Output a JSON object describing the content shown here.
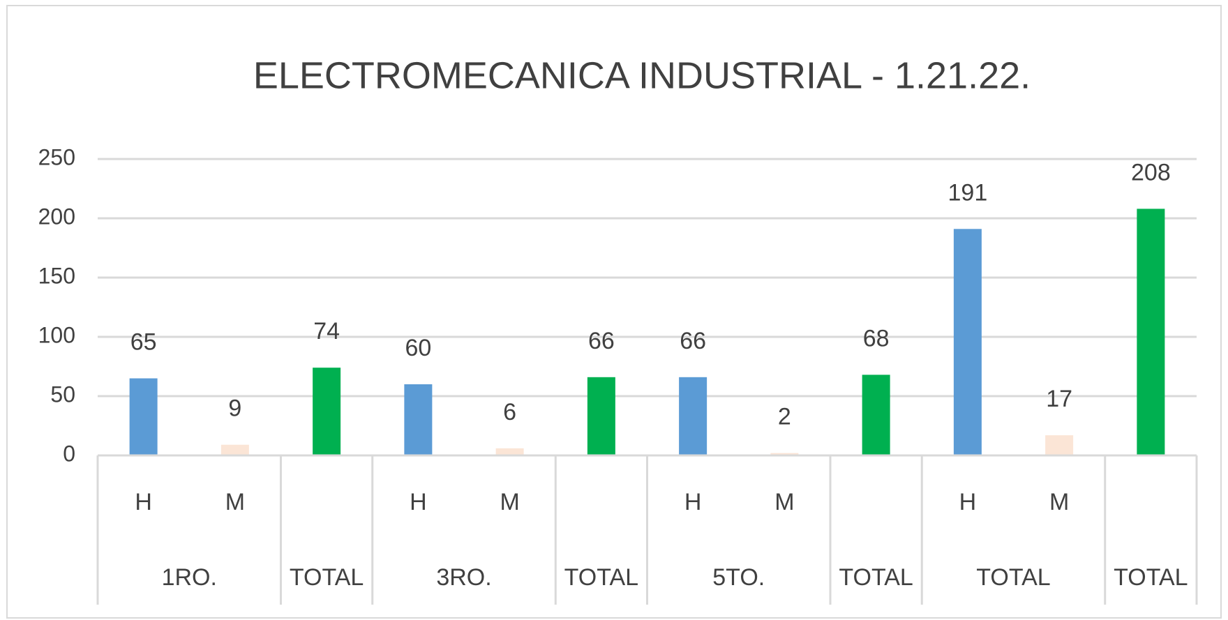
{
  "chart_data": {
    "type": "bar",
    "title": "ELECTROMECANICA INDUSTRIAL - 1.21.22.",
    "categories": [
      "H",
      "M",
      null,
      "H",
      "M",
      null,
      "H",
      "M",
      null,
      "H",
      "M",
      null
    ],
    "groups": [
      {
        "label": "1RO.",
        "span": 2
      },
      {
        "label": "TOTAL",
        "span": 1
      },
      {
        "label": "3RO.",
        "span": 2
      },
      {
        "label": "TOTAL",
        "span": 1
      },
      {
        "label": "5TO.",
        "span": 2
      },
      {
        "label": "TOTAL",
        "span": 1
      },
      {
        "label": "TOTAL",
        "span": 2
      },
      {
        "label": "TOTAL",
        "span": 1
      }
    ],
    "values": [
      65,
      9,
      74,
      60,
      6,
      66,
      66,
      2,
      68,
      191,
      17,
      208
    ],
    "colors": [
      "#5b9bd5",
      "#fbe5d6",
      "#00b050",
      "#5b9bd5",
      "#fbe5d6",
      "#00b050",
      "#5b9bd5",
      "#fbe5d6",
      "#00b050",
      "#5b9bd5",
      "#fbe5d6",
      "#00b050"
    ],
    "ylim": [
      0,
      250
    ],
    "yticks": [
      0,
      50,
      100,
      150,
      200,
      250
    ],
    "grid": true
  }
}
